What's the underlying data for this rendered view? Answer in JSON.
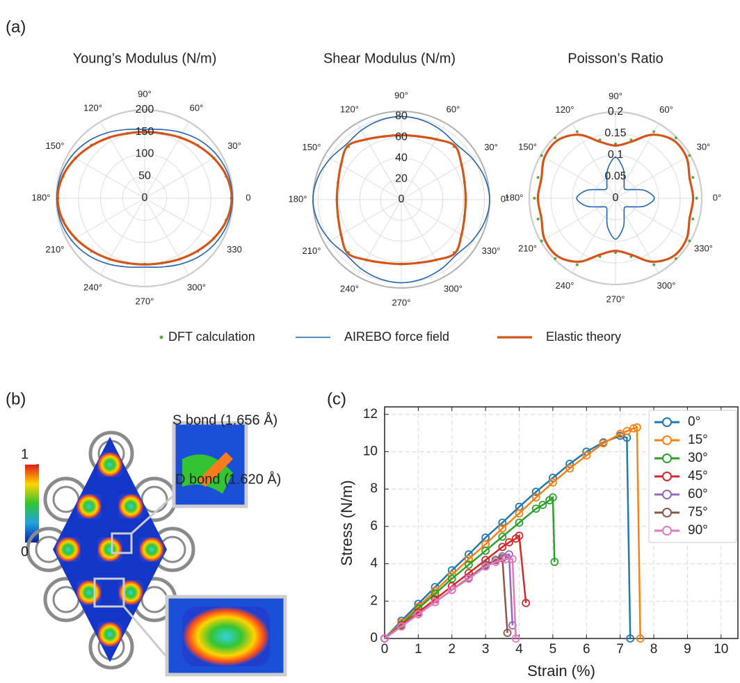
{
  "panels": {
    "a": "(a)",
    "b": "(b)",
    "c": "(c)"
  },
  "panel_b": {
    "s_bond": "S bond (1.656 Å)",
    "d_bond": "D bond (1.620 Å)",
    "colorbar_lim": [
      0,
      1
    ],
    "colorbar_ticks": [
      1,
      0
    ]
  },
  "chart_data": [
    {
      "type": "polar",
      "title": "Young’s Modulus (N/m)",
      "theta": [
        0,
        15,
        30,
        45,
        60,
        75,
        90,
        105,
        120,
        135,
        150,
        165,
        180,
        195,
        210,
        225,
        240,
        255,
        270,
        285,
        300,
        315,
        330,
        345
      ],
      "rlim": [
        0,
        200
      ],
      "rticks": [
        0,
        50,
        100,
        150,
        200
      ],
      "thetaticks": [
        0,
        {
          "value": 30,
          "label": "30°"
        },
        {
          "value": 60,
          "label": "60°"
        },
        {
          "value": 90,
          "label": "90°"
        },
        {
          "value": 120,
          "label": "120°"
        },
        {
          "value": 150,
          "label": "150°"
        },
        {
          "value": 180,
          "label": "180°"
        },
        {
          "value": 210,
          "label": "210°"
        },
        {
          "value": 240,
          "label": "240°"
        },
        {
          "value": 270,
          "label": "270°"
        },
        {
          "value": 300,
          "label": "300°"
        },
        330
      ],
      "series": [
        {
          "name": "DFT calculation",
          "color": "#5aa846",
          "marker": "dot",
          "values": [
            196,
            191,
            181,
            170,
            159,
            152,
            149,
            152,
            159,
            170,
            181,
            191,
            196,
            191,
            181,
            170,
            159,
            152,
            149,
            152,
            159,
            170,
            181,
            191
          ]
        },
        {
          "name": "AIREBO force field",
          "color": "#1f63b0",
          "linewidth": 1.6,
          "values": [
            199,
            197,
            191,
            182,
            171,
            161,
            156,
            161,
            171,
            182,
            191,
            197,
            199,
            197,
            191,
            182,
            171,
            161,
            156,
            161,
            171,
            182,
            191,
            197
          ]
        },
        {
          "name": "Elastic theory",
          "color": "#d4541a",
          "linewidth": 3.2,
          "values": [
            197,
            192,
            181,
            169,
            159,
            152,
            150,
            152,
            159,
            169,
            181,
            192,
            197,
            192,
            181,
            169,
            159,
            152,
            150,
            152,
            159,
            169,
            181,
            192
          ]
        }
      ]
    },
    {
      "type": "polar",
      "title": "Shear Modulus (N/m)",
      "theta": [
        0,
        15,
        30,
        45,
        60,
        75,
        90,
        105,
        120,
        135,
        150,
        165,
        180,
        195,
        210,
        225,
        240,
        255,
        270,
        285,
        300,
        315,
        330,
        345
      ],
      "rlim": [
        0,
        85
      ],
      "rticks": [
        0,
        20,
        40,
        60,
        80
      ],
      "thetaticks": [
        {
          "value": 0,
          "label": "0°"
        },
        {
          "value": 30,
          "label": "30°"
        },
        {
          "value": 60,
          "label": "60°"
        },
        {
          "value": 90,
          "label": "90°"
        },
        {
          "value": 120,
          "label": "120°"
        },
        {
          "value": 150,
          "label": "150°"
        },
        {
          "value": 180,
          "label": "180°"
        },
        {
          "value": 210,
          "label": "210°"
        },
        {
          "value": 240,
          "label": "240°"
        },
        {
          "value": 270,
          "label": "270°"
        },
        {
          "value": 300,
          "label": "300°"
        },
        {
          "value": 330,
          "label": "330°"
        }
      ],
      "series": [
        {
          "color": "#5aa846",
          "marker": "dot",
          "values": [
            62,
            63,
            67,
            72,
            67,
            63,
            62,
            63,
            67,
            72,
            67,
            63,
            62,
            63,
            67,
            72,
            67,
            63,
            62,
            63,
            67,
            72,
            67,
            63
          ]
        },
        {
          "color": "#1f63b0",
          "linewidth": 1.6,
          "values": [
            85,
            83,
            79,
            75,
            77,
            79,
            80,
            79,
            77,
            75,
            79,
            83,
            85,
            83,
            79,
            75,
            77,
            79,
            80,
            79,
            77,
            75,
            79,
            83
          ]
        },
        {
          "color": "#d4541a",
          "linewidth": 3.2,
          "values": [
            62,
            63,
            67,
            73,
            67,
            63,
            62,
            63,
            67,
            73,
            67,
            63,
            62,
            63,
            67,
            73,
            67,
            63,
            62,
            63,
            67,
            73,
            67,
            63
          ]
        }
      ]
    },
    {
      "type": "polar",
      "title": "Poisson’s Ratio",
      "theta": [
        0,
        15,
        30,
        45,
        60,
        75,
        90,
        105,
        120,
        135,
        150,
        165,
        180,
        195,
        210,
        225,
        240,
        255,
        270,
        285,
        300,
        315,
        330,
        345
      ],
      "rlim": [
        0,
        0.2
      ],
      "rticks": [
        0,
        0.05,
        0.1,
        0.15,
        0.2
      ],
      "thetaticks": [
        {
          "value": 0,
          "label": "0°"
        },
        {
          "value": 30,
          "label": "30°"
        },
        {
          "value": 60,
          "label": "60°"
        },
        {
          "value": 90,
          "label": "90°"
        },
        {
          "value": 120,
          "label": "120°"
        },
        {
          "value": 150,
          "label": "150°"
        },
        {
          "value": 180,
          "label": "180°"
        },
        {
          "value": 210,
          "label": "210°"
        },
        {
          "value": 240,
          "label": "240°"
        },
        {
          "value": 270,
          "label": "270°"
        },
        {
          "value": 300,
          "label": "300°"
        },
        {
          "value": 330,
          "label": "330°"
        }
      ],
      "series": [
        {
          "color": "#5aa846",
          "marker": "dot",
          "values": [
            0.188,
            0.186,
            0.198,
            0.198,
            0.178,
            0.14,
            0.126,
            0.14,
            0.178,
            0.198,
            0.198,
            0.186,
            0.188,
            0.186,
            0.198,
            0.198,
            0.178,
            0.14,
            0.126,
            0.14,
            0.178,
            0.198,
            0.198,
            0.186
          ]
        },
        {
          "color": "#1f63b0",
          "linewidth": 1.6,
          "values": [
            0.09,
            0.07,
            0.04,
            0.03,
            0.04,
            0.07,
            0.095,
            0.07,
            0.04,
            0.03,
            0.04,
            0.07,
            0.09,
            0.07,
            0.04,
            0.03,
            0.04,
            0.07,
            0.095,
            0.07,
            0.04,
            0.03,
            0.04,
            0.07
          ]
        },
        {
          "color": "#d4541a",
          "linewidth": 3.2,
          "values": [
            0.18,
            0.178,
            0.19,
            0.19,
            0.17,
            0.135,
            0.122,
            0.135,
            0.17,
            0.19,
            0.19,
            0.178,
            0.18,
            0.178,
            0.19,
            0.19,
            0.17,
            0.135,
            0.122,
            0.135,
            0.17,
            0.19,
            0.19,
            0.178
          ]
        }
      ]
    },
    {
      "type": "line",
      "xlabel": "Strain (%)",
      "ylabel": "Stress (N/m)",
      "xlim": [
        0,
        10.5
      ],
      "ylim": [
        0,
        12.4
      ],
      "xticks": [
        0,
        1,
        2,
        3,
        4,
        5,
        6,
        7,
        8,
        9,
        10
      ],
      "yticks": [
        0,
        2,
        4,
        6,
        8,
        10,
        12
      ],
      "grid": true,
      "legend": "upper right",
      "series": [
        {
          "name": "0°",
          "color": "#1f77b4",
          "x": [
            0,
            0.5,
            1,
            1.5,
            2,
            2.5,
            3,
            3.5,
            4,
            4.5,
            5,
            5.5,
            6,
            6.5,
            7,
            7.2,
            7.3
          ],
          "values": [
            0,
            0.95,
            1.85,
            2.75,
            3.65,
            4.5,
            5.4,
            6.2,
            7.05,
            7.85,
            8.6,
            9.35,
            10,
            10.5,
            10.85,
            10.75,
            0
          ]
        },
        {
          "name": "15°",
          "color": "#ff7f0e",
          "x": [
            0,
            0.5,
            1,
            1.5,
            2,
            2.5,
            3,
            3.5,
            4,
            4.5,
            5,
            5.5,
            6,
            6.5,
            7,
            7.2,
            7.4,
            7.5,
            7.6
          ],
          "values": [
            0,
            0.85,
            1.7,
            2.55,
            3.4,
            4.25,
            5.05,
            5.9,
            6.7,
            7.55,
            8.35,
            9.1,
            9.8,
            10.45,
            10.95,
            11.1,
            11.25,
            11.3,
            0
          ]
        },
        {
          "name": "30°",
          "color": "#2ca02c",
          "x": [
            0,
            0.5,
            1,
            1.5,
            2,
            2.5,
            3,
            3.5,
            4,
            4.5,
            4.7,
            4.9,
            5,
            5.05
          ],
          "values": [
            0,
            0.75,
            1.6,
            2.4,
            3.2,
            3.95,
            4.7,
            5.45,
            6.2,
            6.95,
            7.15,
            7.4,
            7.55,
            4.1
          ]
        },
        {
          "name": "45°",
          "color": "#d62728",
          "x": [
            0,
            0.5,
            1,
            1.5,
            2,
            2.5,
            3,
            3.5,
            3.7,
            3.9,
            4,
            4.2
          ],
          "values": [
            0,
            0.7,
            1.4,
            2.1,
            2.8,
            3.5,
            4.2,
            4.9,
            5.15,
            5.35,
            5.5,
            1.9
          ]
        },
        {
          "name": "60°",
          "color": "#9467bd",
          "x": [
            0,
            0.5,
            1,
            1.5,
            2,
            2.5,
            3,
            3.3,
            3.5,
            3.7,
            3.8
          ],
          "values": [
            0,
            0.65,
            1.3,
            1.95,
            2.6,
            3.25,
            3.9,
            4.2,
            4.4,
            4.5,
            0.7
          ]
        },
        {
          "name": "75°",
          "color": "#8c564b",
          "x": [
            0,
            0.5,
            1,
            1.5,
            2,
            2.5,
            3,
            3.3,
            3.5,
            3.65
          ],
          "values": [
            0,
            0.65,
            1.3,
            1.95,
            2.6,
            3.25,
            3.95,
            4.2,
            4.3,
            0.3
          ]
        },
        {
          "name": "90°",
          "color": "#e377c2",
          "x": [
            0,
            0.5,
            1,
            1.5,
            2,
            2.5,
            3,
            3.3,
            3.6,
            3.8,
            3.9
          ],
          "values": [
            0,
            0.65,
            1.3,
            1.95,
            2.6,
            3.2,
            3.85,
            4.1,
            4.25,
            4.25,
            0
          ]
        }
      ]
    }
  ]
}
